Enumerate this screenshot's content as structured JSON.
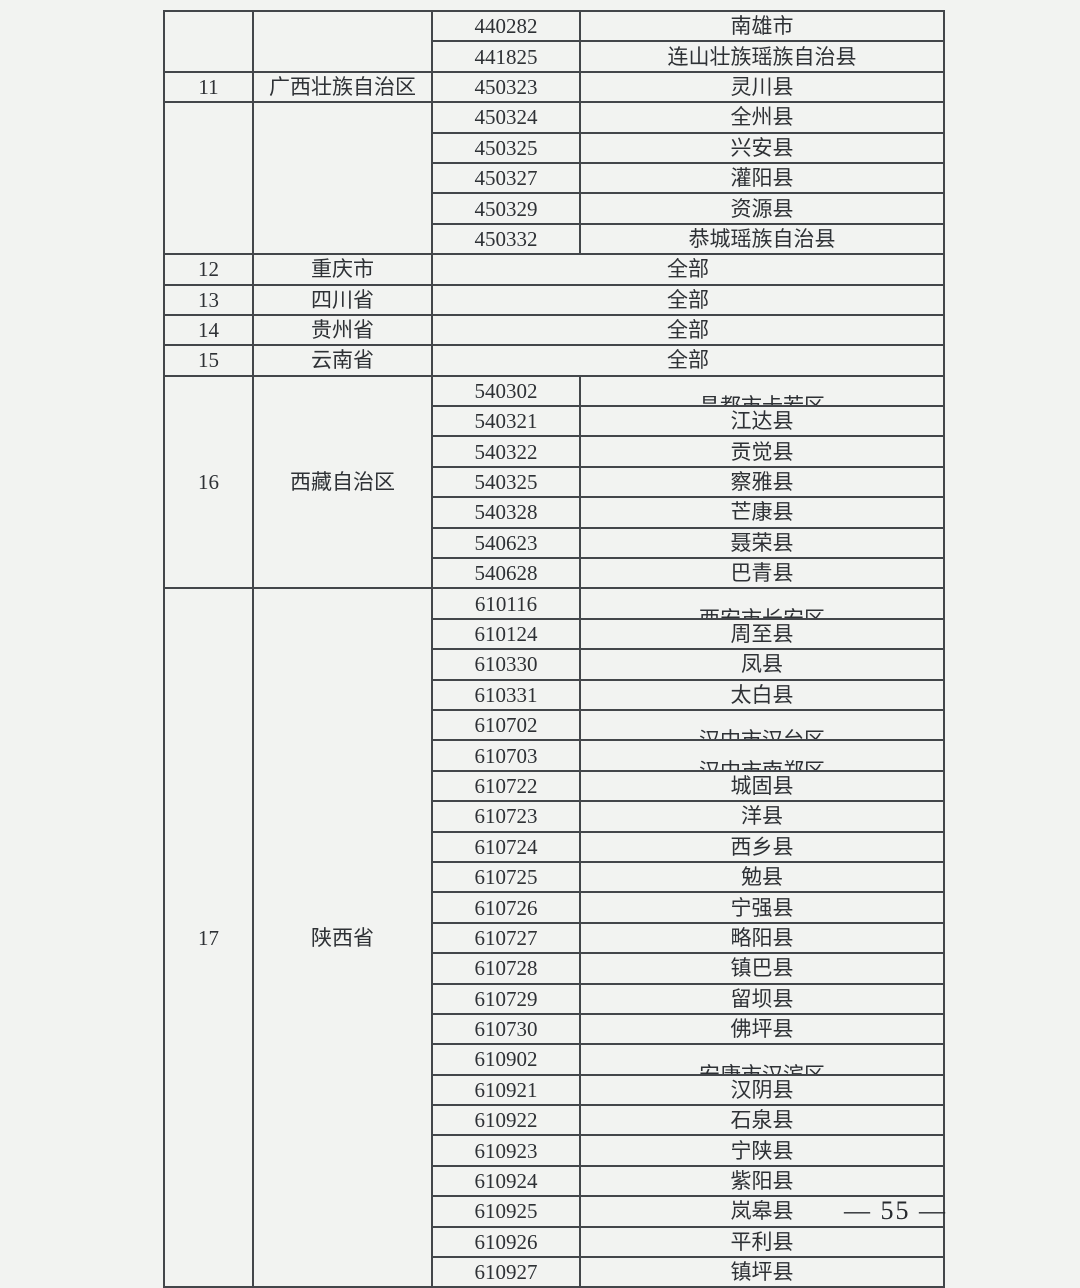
{
  "page": {
    "page_number": "— 55 —"
  },
  "table": {
    "groups": [
      {
        "index": "",
        "province": "",
        "entries": [
          {
            "code": "440282",
            "name": "南雄市"
          },
          {
            "code": "441825",
            "name": "连山壮族瑶族自治县"
          }
        ]
      },
      {
        "index": "11",
        "province": "广西壮族自治区",
        "entries": [
          {
            "code": "450323",
            "name": "灵川县"
          }
        ]
      },
      {
        "index": "",
        "province": "",
        "entries": [
          {
            "code": "450324",
            "name": "全州县"
          },
          {
            "code": "450325",
            "name": "兴安县"
          },
          {
            "code": "450327",
            "name": "灌阳县"
          },
          {
            "code": "450329",
            "name": "资源县"
          },
          {
            "code": "450332",
            "name": "恭城瑶族自治县"
          }
        ]
      },
      {
        "index": "12",
        "province": "重庆市",
        "all": "全部"
      },
      {
        "index": "13",
        "province": "四川省",
        "all": "全部"
      },
      {
        "index": "14",
        "province": "贵州省",
        "all": "全部"
      },
      {
        "index": "15",
        "province": "云南省",
        "all": "全部"
      },
      {
        "index": "16",
        "province": "西藏自治区",
        "entries": [
          {
            "code": "540302",
            "name": "昌都市卡若区",
            "clipped": true
          },
          {
            "code": "540321",
            "name": "江达县"
          },
          {
            "code": "540322",
            "name": "贡觉县"
          },
          {
            "code": "540325",
            "name": "察雅县"
          },
          {
            "code": "540328",
            "name": "芒康县"
          },
          {
            "code": "540623",
            "name": "聂荣县"
          },
          {
            "code": "540628",
            "name": "巴青县"
          }
        ]
      },
      {
        "index": "17",
        "province": "陕西省",
        "entries": [
          {
            "code": "610116",
            "name": "西安市长安区",
            "clipped": true
          },
          {
            "code": "610124",
            "name": "周至县"
          },
          {
            "code": "610330",
            "name": "凤县"
          },
          {
            "code": "610331",
            "name": "太白县"
          },
          {
            "code": "610702",
            "name": "汉中市汉台区",
            "clipped": true
          },
          {
            "code": "610703",
            "name": "汉中市南郑区",
            "clipped": true
          },
          {
            "code": "610722",
            "name": "城固县"
          },
          {
            "code": "610723",
            "name": "洋县"
          },
          {
            "code": "610724",
            "name": "西乡县"
          },
          {
            "code": "610725",
            "name": "勉县"
          },
          {
            "code": "610726",
            "name": "宁强县"
          },
          {
            "code": "610727",
            "name": "略阳县"
          },
          {
            "code": "610728",
            "name": "镇巴县"
          },
          {
            "code": "610729",
            "name": "留坝县"
          },
          {
            "code": "610730",
            "name": "佛坪县"
          },
          {
            "code": "610902",
            "name": "安康市汉滨区",
            "clipped": true
          },
          {
            "code": "610921",
            "name": "汉阴县"
          },
          {
            "code": "610922",
            "name": "石泉县"
          },
          {
            "code": "610923",
            "name": "宁陕县"
          },
          {
            "code": "610924",
            "name": "紫阳县"
          },
          {
            "code": "610925",
            "name": "岚皋县"
          },
          {
            "code": "610926",
            "name": "平利县"
          },
          {
            "code": "610927",
            "name": "镇坪县"
          }
        ]
      }
    ]
  }
}
